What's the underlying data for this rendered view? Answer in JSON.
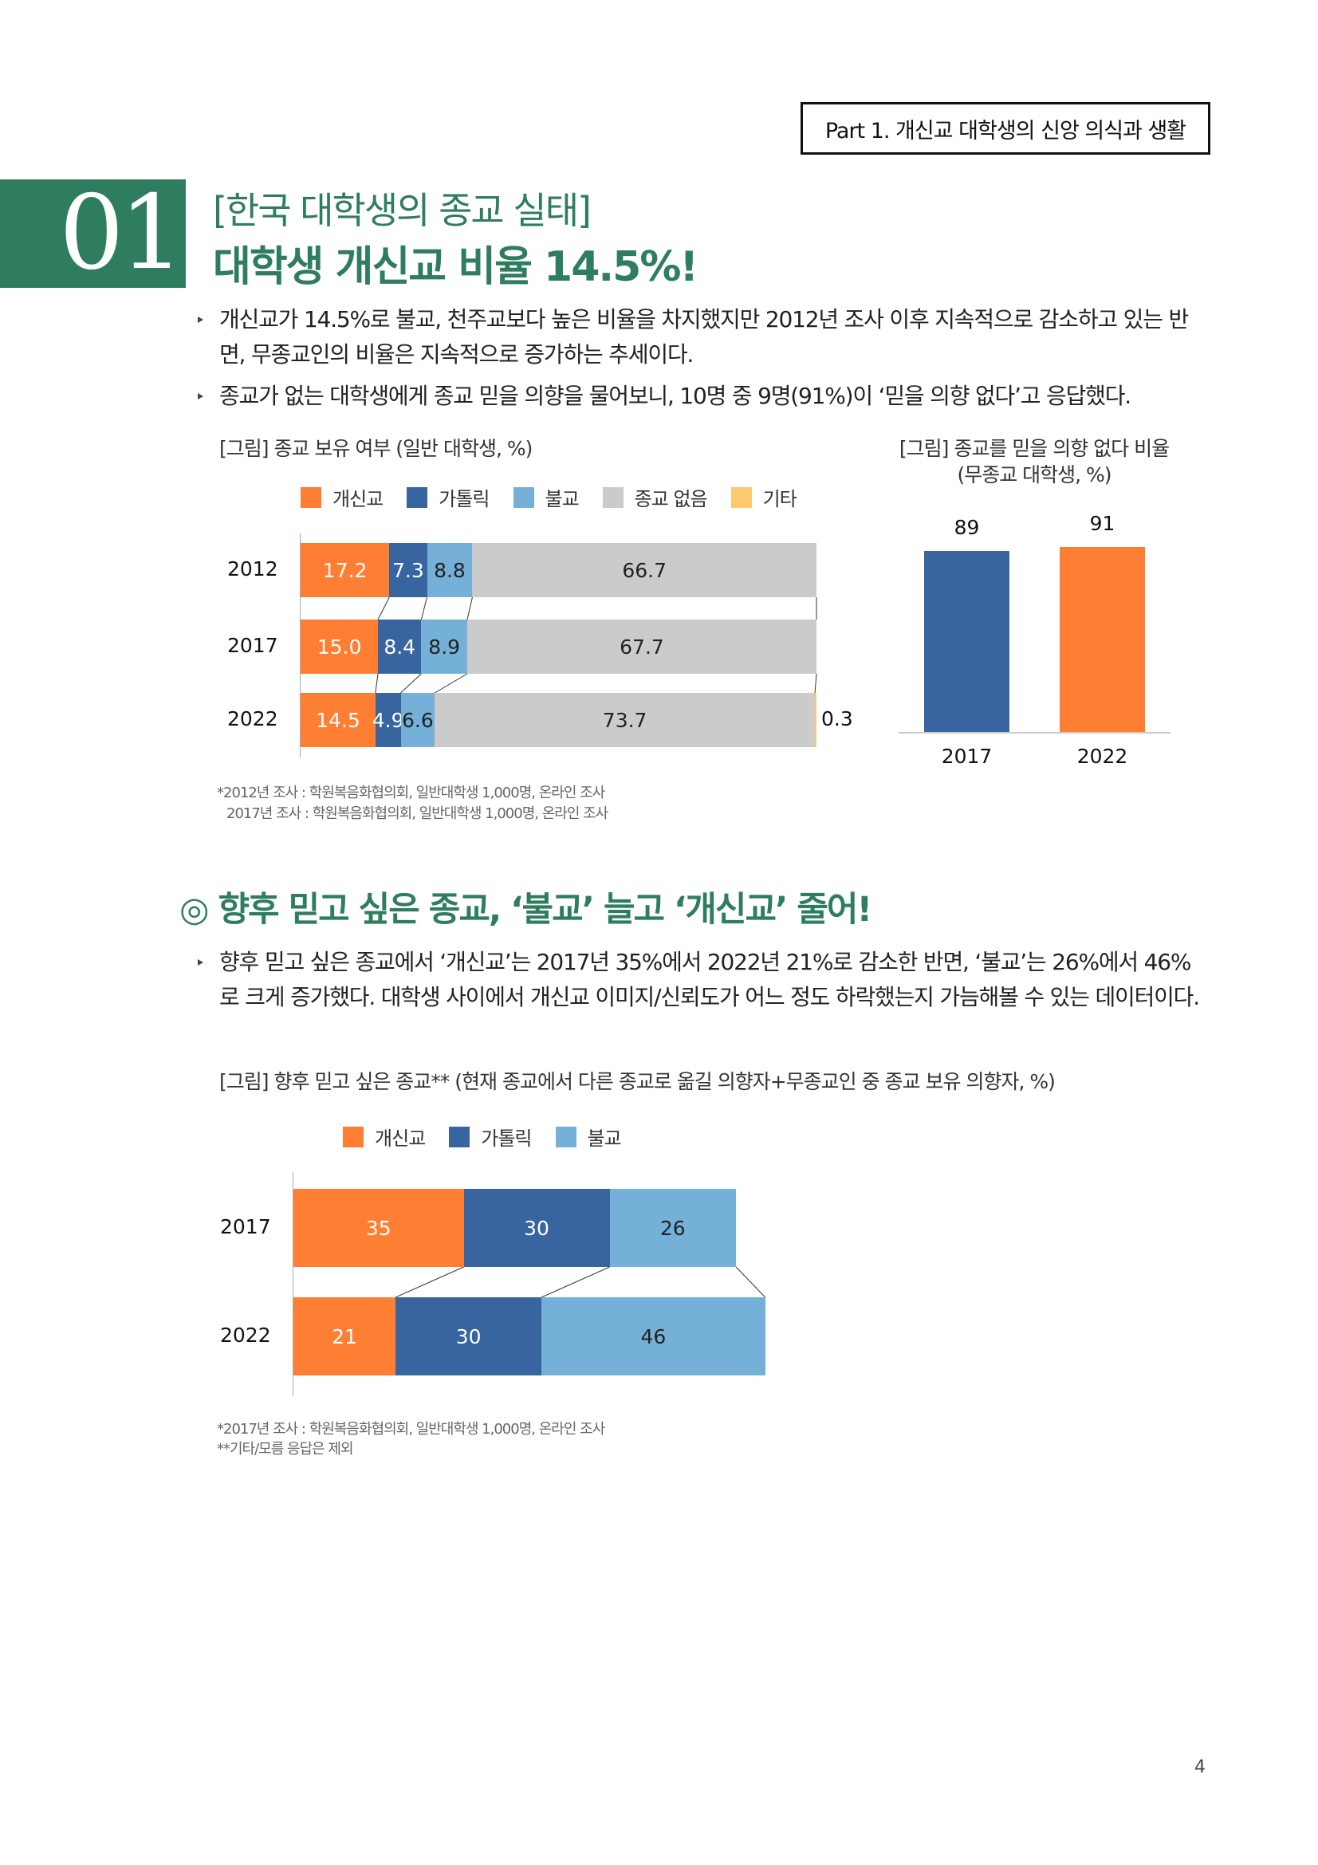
{
  "header": {
    "part_label": "Part 1. 개신교 대학생의 신앙 의식과 생활"
  },
  "section1": {
    "number": "01",
    "title_line1": "[한국 대학생의 종교 실태]",
    "title_line2": "대학생 개신교 비율 14.5%!",
    "bullets": [
      "개신교가 14.5%로 불교, 천주교보다 높은 비율을 차지했지만 2012년 조사 이후 지속적으로 감소하고 있는 반면, 무종교인의 비율은 지속적으로 증가하는 추세이다.",
      "종교가 없는 대학생에게 종교 믿을 의향을 물어보니, 10명 중 9명(91%)이 ‘믿을 의향 없다’고 응답했다."
    ],
    "footnotes": [
      "*2012년 조사 : 학원복음화협의회, 일반대학생 1,000명, 온라인 조사",
      "2017년 조사 : 학원복음화협의회, 일반대학생 1,000명, 온라인 조사"
    ]
  },
  "section2": {
    "title": "◎ 향후 믿고 싶은 종교, ‘불교’ 늘고 ‘개신교’ 줄어!",
    "bullet": "향후 믿고 싶은 종교에서 ‘개신교’는 2017년 35%에서 2022년 21%로 감소한 반면, ‘불교’는 26%에서 46%로 크게 증가했다. 대학생 사이에서 개신교 이미지/신뢰도가 어느 정도 하락했는지 가늠해볼 수 있는 데이터이다.",
    "footnotes": [
      "*2017년 조사 : 학원복음화협의회, 일반대학생 1,000명, 온라인 조사",
      "**기타/모름 응답은 제외"
    ]
  },
  "page_number": "4",
  "colors": {
    "green": "#2e7d5e",
    "protestant": "#fe7f33",
    "catholic": "#3865a0",
    "buddhism": "#74b0d7",
    "none": "#cbcbcb",
    "other": "#fdc86e"
  },
  "chart_data": [
    {
      "type": "bar",
      "orientation": "horizontal-stacked",
      "title": "[그림] 종교 보유 여부 (일반 대학생, %)",
      "categories": [
        "2012",
        "2017",
        "2022"
      ],
      "series": [
        {
          "name": "개신교",
          "values": [
            17.2,
            15.0,
            14.5
          ]
        },
        {
          "name": "가톨릭",
          "values": [
            7.3,
            8.4,
            4.9
          ]
        },
        {
          "name": "불교",
          "values": [
            8.8,
            8.9,
            6.6
          ]
        },
        {
          "name": "종교 없음",
          "values": [
            66.7,
            67.7,
            73.7
          ]
        },
        {
          "name": "기타",
          "values": [
            null,
            null,
            0.3
          ]
        }
      ],
      "labels": [
        [
          "17.2",
          "7.3",
          "8.8",
          "66.7",
          null
        ],
        [
          "15.0",
          "8.4",
          "8.9",
          "67.7",
          null
        ],
        [
          "14.5",
          "4.9",
          "6.6",
          "73.7",
          "0.3"
        ]
      ],
      "xlim": [
        0,
        100
      ],
      "legend": "top"
    },
    {
      "type": "bar",
      "title": "[그림] 종교를 믿을 의향 없다 비율",
      "subtitle": "(무종교 대학생, %)",
      "categories": [
        "2017",
        "2022"
      ],
      "values": [
        89,
        91
      ],
      "labels": [
        "89",
        "91"
      ],
      "ylim": [
        0,
        100
      ]
    },
    {
      "type": "bar",
      "orientation": "horizontal-stacked",
      "title": "[그림] 향후 믿고 싶은 종교** (현재 종교에서 다른 종교로 옮길 의향자+무종교인 중 종교 보유 의향자, %)",
      "categories": [
        "2017",
        "2022"
      ],
      "series": [
        {
          "name": "개신교",
          "values": [
            35,
            21
          ]
        },
        {
          "name": "가톨릭",
          "values": [
            30,
            30
          ]
        },
        {
          "name": "불교",
          "values": [
            26,
            46
          ]
        }
      ],
      "labels": [
        [
          "35",
          "30",
          "26"
        ],
        [
          "21",
          "30",
          "46"
        ]
      ],
      "legend": "top"
    }
  ]
}
